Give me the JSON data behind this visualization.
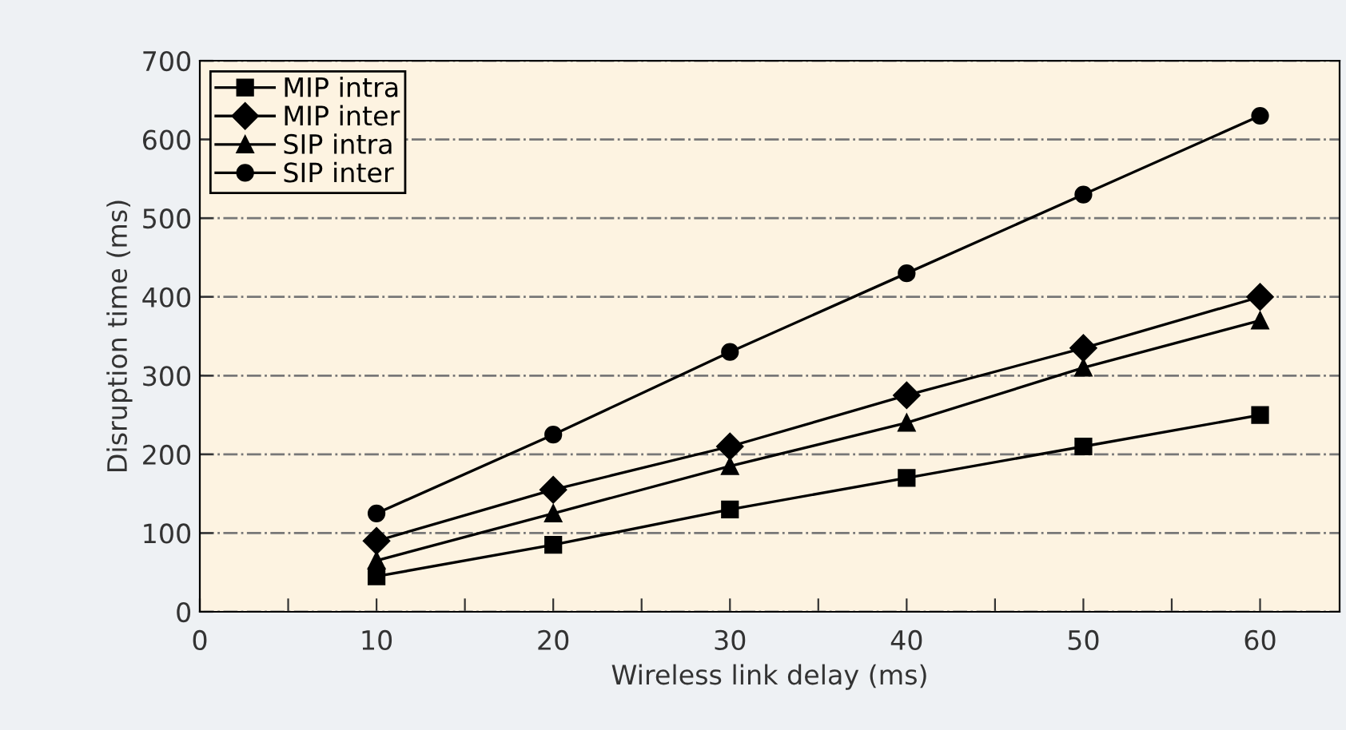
{
  "chart_data": {
    "type": "line",
    "xlabel": "Wireless link delay (ms)",
    "ylabel": "Disruption time (ms)",
    "x": [
      10,
      20,
      30,
      40,
      50,
      60
    ],
    "series": [
      {
        "name": "MIP intra",
        "color": "#000000",
        "marker": "square",
        "values": [
          45,
          85,
          130,
          170,
          210,
          250
        ]
      },
      {
        "name": "MIP inter",
        "color": "#000000",
        "marker": "diamond",
        "values": [
          90,
          155,
          210,
          275,
          335,
          400
        ]
      },
      {
        "name": "SIP intra",
        "color": "#000000",
        "marker": "triangle",
        "values": [
          65,
          125,
          185,
          240,
          310,
          370
        ]
      },
      {
        "name": "SIP inter",
        "color": "#000000",
        "marker": "circle",
        "values": [
          125,
          225,
          330,
          430,
          530,
          630
        ]
      }
    ],
    "xlim": [
      0,
      64.5
    ],
    "xticks": [
      0,
      {
        "value": 5,
        "label": null
      },
      10,
      {
        "value": 15,
        "label": null
      },
      20,
      {
        "value": 25,
        "label": null
      },
      30,
      {
        "value": 35,
        "label": null
      },
      40,
      {
        "value": 45,
        "label": null
      },
      50,
      {
        "value": 55,
        "label": null
      },
      60
    ],
    "ylim": [
      0,
      700
    ],
    "yticks": [
      0,
      100,
      200,
      300,
      400,
      500,
      600,
      700
    ],
    "grid": "y",
    "legend": "top left",
    "line_style": "solid"
  }
}
